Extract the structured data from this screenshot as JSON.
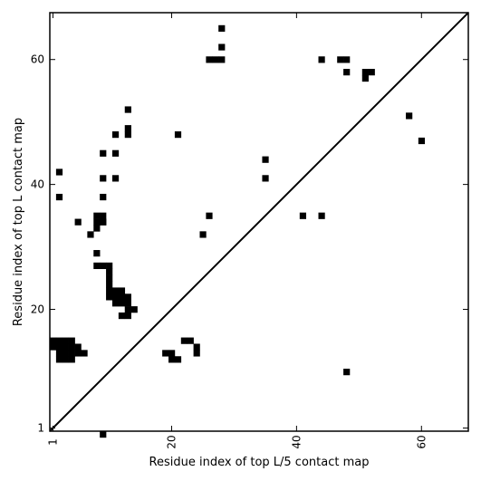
{
  "chart_data": {
    "type": "heatmap",
    "title": "",
    "xlabel": "Residue index of top L/5 contact map",
    "ylabel": "Residue index of top L contact map",
    "xlim": [
      0.5,
      67.5
    ],
    "ylim": [
      0.5,
      67.5
    ],
    "x_ticks": [
      1,
      20,
      40,
      60
    ],
    "y_ticks": [
      1,
      20,
      40,
      60
    ],
    "x_tick_rotation": -90,
    "grid": false,
    "diagonal_line": true,
    "lower_triangle_cells": [
      [
        1,
        15
      ],
      [
        2,
        15
      ],
      [
        3,
        15
      ],
      [
        4,
        15
      ],
      [
        1,
        14
      ],
      [
        2,
        14
      ],
      [
        3,
        14
      ],
      [
        4,
        14
      ],
      [
        5,
        14
      ],
      [
        2,
        13
      ],
      [
        3,
        13
      ],
      [
        4,
        13
      ],
      [
        5,
        13
      ],
      [
        6,
        13
      ],
      [
        2,
        12
      ],
      [
        3,
        12
      ],
      [
        4,
        12
      ],
      [
        9,
        0
      ],
      [
        20,
        12
      ],
      [
        21,
        12
      ],
      [
        19,
        13
      ],
      [
        20,
        13
      ],
      [
        22,
        15
      ],
      [
        23,
        15
      ],
      [
        24,
        14
      ],
      [
        24,
        13
      ],
      [
        48,
        10
      ]
    ],
    "upper_triangle_cells": [
      [
        2,
        42
      ],
      [
        2,
        38
      ],
      [
        5,
        34
      ],
      [
        7,
        32
      ],
      [
        8,
        35
      ],
      [
        9,
        35
      ],
      [
        8,
        34
      ],
      [
        9,
        34
      ],
      [
        8,
        33
      ],
      [
        9,
        34
      ],
      [
        8,
        29
      ],
      [
        8,
        27
      ],
      [
        9,
        27
      ],
      [
        10,
        27
      ],
      [
        10,
        26
      ],
      [
        10,
        25
      ],
      [
        10,
        24
      ],
      [
        10,
        23
      ],
      [
        11,
        23
      ],
      [
        12,
        23
      ],
      [
        10,
        22
      ],
      [
        11,
        22
      ],
      [
        12,
        22
      ],
      [
        13,
        22
      ],
      [
        11,
        21
      ],
      [
        12,
        21
      ],
      [
        13,
        21
      ],
      [
        13,
        20
      ],
      [
        14,
        20
      ],
      [
        12,
        19
      ],
      [
        13,
        19
      ],
      [
        9,
        45
      ],
      [
        11,
        45
      ],
      [
        9,
        41
      ],
      [
        11,
        41
      ],
      [
        9,
        38
      ],
      [
        11,
        48
      ],
      [
        13,
        52
      ],
      [
        13,
        49
      ],
      [
        13,
        48
      ],
      [
        21,
        48
      ],
      [
        25,
        32
      ],
      [
        26,
        35
      ],
      [
        26,
        60
      ],
      [
        27,
        60
      ],
      [
        28,
        60
      ],
      [
        28,
        62
      ],
      [
        28,
        65
      ],
      [
        35,
        44
      ],
      [
        35,
        41
      ],
      [
        41,
        35
      ],
      [
        44,
        35
      ],
      [
        44,
        60
      ],
      [
        47,
        60
      ],
      [
        48,
        60
      ],
      [
        48,
        58
      ],
      [
        51,
        58
      ],
      [
        52,
        58
      ],
      [
        51,
        57
      ],
      [
        58,
        51
      ],
      [
        60,
        47
      ]
    ]
  }
}
